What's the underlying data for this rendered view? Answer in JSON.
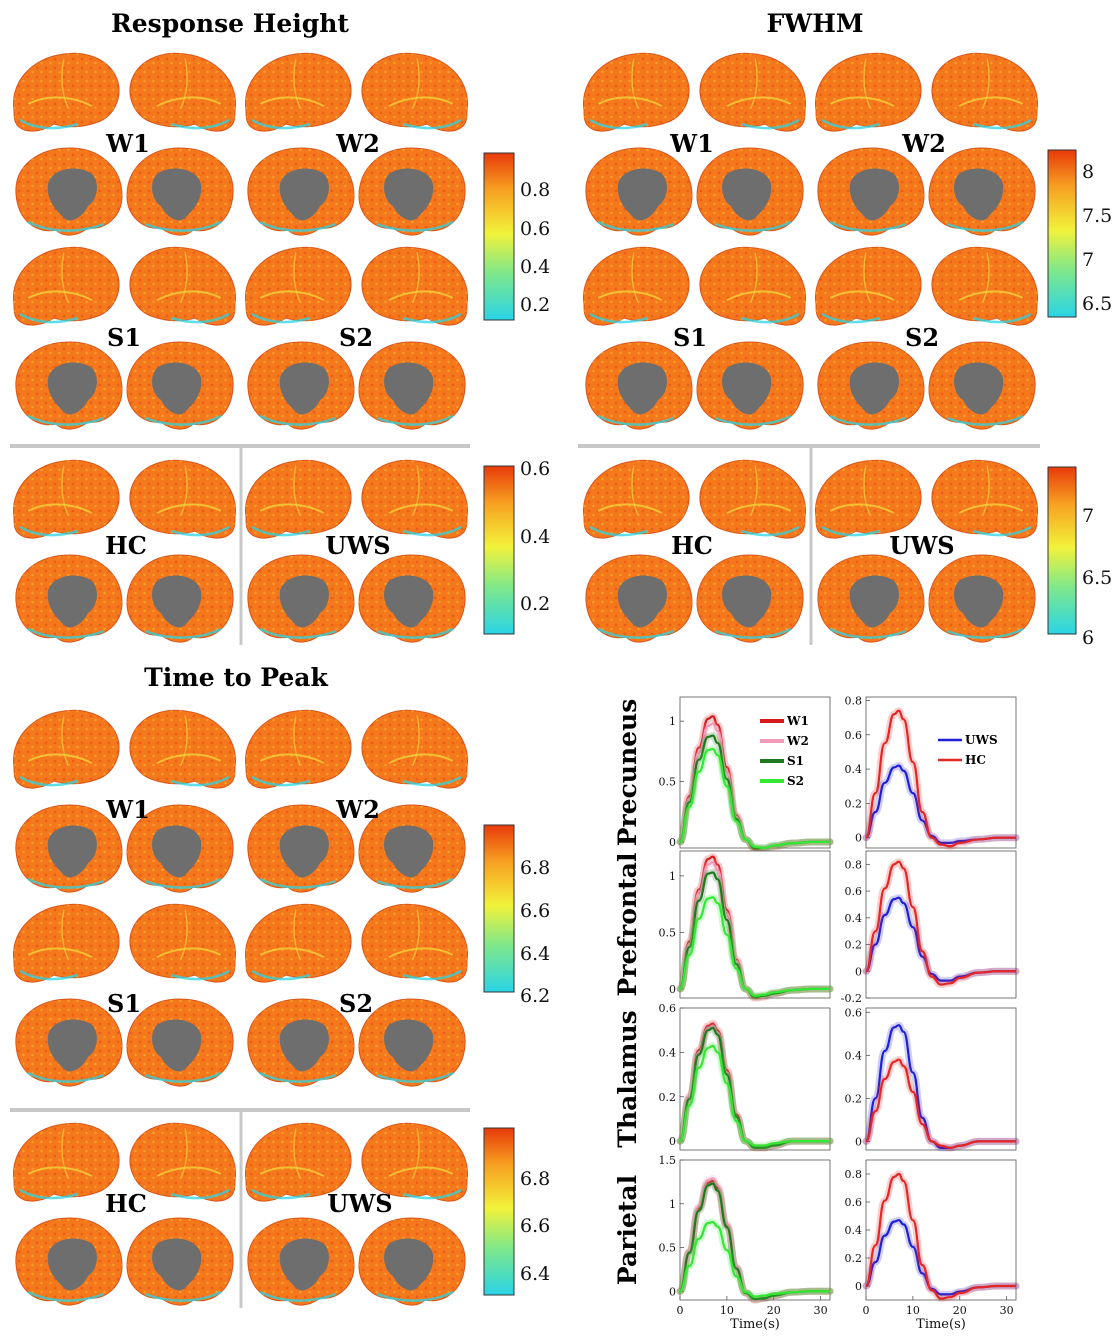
{
  "panels": [
    {
      "id": "response-height",
      "title": "Response Height",
      "groups_top": [
        "W1",
        "W2",
        "S1",
        "S2"
      ],
      "groups_bottom": [
        "HC",
        "UWS"
      ],
      "colorbar_top": [
        "0.8",
        "0.6",
        "0.4",
        "0.2"
      ],
      "colorbar_bottom": [
        "0.6",
        "0.4",
        "0.2"
      ]
    },
    {
      "id": "fwhm",
      "title": "FWHM",
      "groups_top": [
        "W1",
        "W2",
        "S1",
        "S2"
      ],
      "groups_bottom": [
        "HC",
        "UWS"
      ],
      "colorbar_top": [
        "8",
        "7.5",
        "7",
        "6.5"
      ],
      "colorbar_bottom": [
        "7",
        "6.5",
        "6"
      ]
    },
    {
      "id": "time-to-peak",
      "title": "Time to Peak",
      "groups_top": [
        "W1",
        "W2",
        "S1",
        "S2"
      ],
      "groups_bottom": [
        "HC",
        "UWS"
      ],
      "colorbar_top": [
        "6.8",
        "6.6",
        "6.4",
        "6.2"
      ],
      "colorbar_bottom": [
        "6.8",
        "6.6",
        "6.4"
      ]
    }
  ],
  "colors": {
    "colormap": [
      "#2ad4e6",
      "#7fe88a",
      "#f2f23a",
      "#f7a021",
      "#e83a0a"
    ],
    "cortex": "#f5781c",
    "cortex_dark": "#e05010",
    "medial_wall": "#6e6e6e",
    "divider": "#c8c8c8",
    "W1": "#d7191c",
    "W2": "#f29bb8",
    "S1": "#1f7a1f",
    "S2": "#33e833",
    "UWS": "#1f1fd6",
    "HC": "#e32626"
  },
  "chart_data": [
    {
      "type": "line",
      "region": "Precuneus",
      "column": "stage",
      "xlabel": "",
      "ylim": [
        -0.05,
        1.2
      ],
      "yticks": [
        "1",
        "0.5",
        "0"
      ],
      "series": [
        {
          "name": "W1",
          "x": [
            0,
            2,
            4,
            6,
            7,
            8,
            10,
            12,
            14,
            16,
            18,
            20,
            24,
            28,
            32
          ],
          "values": [
            0,
            0.38,
            0.78,
            1.02,
            1.04,
            0.97,
            0.62,
            0.22,
            0.02,
            -0.06,
            -0.06,
            -0.04,
            -0.01,
            0,
            0
          ]
        },
        {
          "name": "W2",
          "x": [
            0,
            2,
            4,
            6,
            7,
            8,
            10,
            12,
            14,
            16,
            18,
            20,
            24,
            28,
            32
          ],
          "values": [
            0,
            0.36,
            0.74,
            0.96,
            0.98,
            0.92,
            0.58,
            0.21,
            0.02,
            -0.05,
            -0.06,
            -0.04,
            -0.01,
            0,
            0
          ]
        },
        {
          "name": "S1",
          "x": [
            0,
            2,
            4,
            6,
            7,
            8,
            10,
            12,
            14,
            16,
            18,
            20,
            24,
            28,
            32
          ],
          "values": [
            0,
            0.33,
            0.68,
            0.87,
            0.88,
            0.82,
            0.52,
            0.19,
            0.02,
            -0.05,
            -0.05,
            -0.03,
            -0.01,
            0,
            0
          ]
        },
        {
          "name": "S2",
          "x": [
            0,
            2,
            4,
            6,
            7,
            8,
            10,
            12,
            14,
            16,
            18,
            20,
            24,
            28,
            32
          ],
          "values": [
            0,
            0.29,
            0.58,
            0.76,
            0.77,
            0.72,
            0.46,
            0.17,
            0.02,
            -0.04,
            -0.05,
            -0.03,
            -0.01,
            0,
            0
          ]
        }
      ]
    },
    {
      "type": "line",
      "region": "Precuneus",
      "column": "group",
      "xlabel": "",
      "ylim": [
        -0.06,
        0.82
      ],
      "yticks": [
        "0.8",
        "0.6",
        "0.4",
        "0.2",
        "0"
      ],
      "series": [
        {
          "name": "UWS",
          "x": [
            0,
            2,
            4,
            6,
            7,
            8,
            10,
            12,
            14,
            16,
            18,
            20,
            24,
            28,
            32
          ],
          "values": [
            0,
            0.15,
            0.32,
            0.41,
            0.42,
            0.39,
            0.26,
            0.1,
            0.01,
            -0.03,
            -0.03,
            -0.02,
            -0.01,
            0,
            0
          ]
        },
        {
          "name": "HC",
          "x": [
            0,
            2,
            4,
            6,
            7,
            8,
            10,
            12,
            14,
            16,
            18,
            20,
            24,
            28,
            32
          ],
          "values": [
            0,
            0.26,
            0.55,
            0.72,
            0.74,
            0.69,
            0.44,
            0.15,
            0.0,
            -0.04,
            -0.05,
            -0.03,
            -0.01,
            0,
            0
          ]
        }
      ]
    },
    {
      "type": "line",
      "region": "Prefrontal",
      "column": "stage",
      "xlabel": "",
      "ylim": [
        -0.08,
        1.22
      ],
      "yticks": [
        "1",
        "0.5",
        "0"
      ],
      "series": [
        {
          "name": "W1",
          "x": [
            0,
            2,
            4,
            6,
            7,
            8,
            10,
            12,
            14,
            16,
            18,
            20,
            24,
            28,
            32
          ],
          "values": [
            0,
            0.42,
            0.88,
            1.15,
            1.17,
            1.1,
            0.7,
            0.26,
            0.0,
            -0.08,
            -0.07,
            -0.04,
            -0.01,
            0,
            0
          ]
        },
        {
          "name": "W2",
          "x": [
            0,
            2,
            4,
            6,
            7,
            8,
            10,
            12,
            14,
            16,
            18,
            20,
            24,
            28,
            32
          ],
          "values": [
            0,
            0.4,
            0.85,
            1.1,
            1.12,
            1.05,
            0.67,
            0.25,
            0.0,
            -0.07,
            -0.07,
            -0.04,
            -0.01,
            0,
            0
          ]
        },
        {
          "name": "S1",
          "x": [
            0,
            2,
            4,
            6,
            7,
            8,
            10,
            12,
            14,
            16,
            18,
            20,
            24,
            28,
            32
          ],
          "values": [
            0,
            0.37,
            0.78,
            1.02,
            1.03,
            0.97,
            0.61,
            0.22,
            0.0,
            -0.07,
            -0.06,
            -0.04,
            -0.01,
            0,
            0
          ]
        },
        {
          "name": "S2",
          "x": [
            0,
            2,
            4,
            6,
            7,
            8,
            10,
            12,
            14,
            16,
            18,
            20,
            24,
            28,
            32
          ],
          "values": [
            0,
            0.3,
            0.62,
            0.8,
            0.81,
            0.76,
            0.48,
            0.18,
            0.0,
            -0.06,
            -0.05,
            -0.03,
            -0.01,
            0,
            0
          ]
        }
      ]
    },
    {
      "type": "line",
      "region": "Prefrontal",
      "column": "group",
      "xlabel": "",
      "ylim": [
        -0.2,
        0.9
      ],
      "yticks": [
        "0.8",
        "0.6",
        "0.4",
        "0.2",
        "0",
        "-0.2"
      ],
      "series": [
        {
          "name": "UWS",
          "x": [
            0,
            2,
            4,
            6,
            7,
            8,
            10,
            12,
            14,
            16,
            18,
            20,
            24,
            28,
            32
          ],
          "values": [
            0,
            0.2,
            0.42,
            0.54,
            0.55,
            0.51,
            0.33,
            0.11,
            -0.02,
            -0.07,
            -0.07,
            -0.04,
            -0.01,
            0,
            0
          ]
        },
        {
          "name": "HC",
          "x": [
            0,
            2,
            4,
            6,
            7,
            8,
            10,
            12,
            14,
            16,
            18,
            20,
            24,
            28,
            32
          ],
          "values": [
            0,
            0.3,
            0.62,
            0.8,
            0.82,
            0.77,
            0.48,
            0.15,
            -0.04,
            -0.1,
            -0.09,
            -0.05,
            -0.01,
            0,
            0
          ]
        }
      ]
    },
    {
      "type": "line",
      "region": "Thalamus",
      "column": "stage",
      "xlabel": "",
      "ylim": [
        -0.04,
        0.6
      ],
      "yticks": [
        "0.6",
        "0.4",
        "0.2",
        "0"
      ],
      "series": [
        {
          "name": "W1",
          "x": [
            0,
            2,
            4,
            6,
            7,
            8,
            10,
            12,
            14,
            16,
            18,
            20,
            24,
            28,
            32
          ],
          "values": [
            0,
            0.2,
            0.41,
            0.52,
            0.53,
            0.5,
            0.32,
            0.12,
            0.0,
            -0.03,
            -0.03,
            -0.02,
            0,
            0,
            0
          ]
        },
        {
          "name": "W2",
          "x": [
            0,
            2,
            4,
            6,
            7,
            8,
            10,
            12,
            14,
            16,
            18,
            20,
            24,
            28,
            32
          ],
          "values": [
            0,
            0.2,
            0.4,
            0.51,
            0.52,
            0.49,
            0.31,
            0.11,
            0.0,
            -0.03,
            -0.03,
            -0.02,
            0,
            0,
            0
          ]
        },
        {
          "name": "S1",
          "x": [
            0,
            2,
            4,
            6,
            7,
            8,
            10,
            12,
            14,
            16,
            18,
            20,
            24,
            28,
            32
          ],
          "values": [
            0,
            0.19,
            0.39,
            0.5,
            0.51,
            0.48,
            0.3,
            0.11,
            0.0,
            -0.03,
            -0.03,
            -0.02,
            0,
            0,
            0
          ]
        },
        {
          "name": "S2",
          "x": [
            0,
            2,
            4,
            6,
            7,
            8,
            10,
            12,
            14,
            16,
            18,
            20,
            24,
            28,
            32
          ],
          "values": [
            0,
            0.16,
            0.33,
            0.42,
            0.43,
            0.4,
            0.26,
            0.09,
            0.0,
            -0.02,
            -0.02,
            -0.01,
            0,
            0,
            0
          ]
        }
      ]
    },
    {
      "type": "line",
      "region": "Thalamus",
      "column": "group",
      "xlabel": "",
      "ylim": [
        -0.04,
        0.62
      ],
      "yticks": [
        "0.6",
        "0.4",
        "0.2",
        "0"
      ],
      "series": [
        {
          "name": "UWS",
          "x": [
            0,
            2,
            4,
            6,
            7,
            8,
            10,
            12,
            14,
            16,
            18,
            20,
            24,
            28,
            32
          ],
          "values": [
            0,
            0.2,
            0.42,
            0.53,
            0.54,
            0.51,
            0.32,
            0.11,
            0.0,
            -0.03,
            -0.03,
            -0.02,
            0,
            0,
            0
          ]
        },
        {
          "name": "HC",
          "x": [
            0,
            2,
            4,
            6,
            7,
            8,
            10,
            12,
            14,
            16,
            18,
            20,
            24,
            28,
            32
          ],
          "values": [
            0,
            0.14,
            0.29,
            0.37,
            0.38,
            0.35,
            0.23,
            0.08,
            0.0,
            -0.02,
            -0.03,
            -0.02,
            0,
            0,
            0
          ]
        }
      ]
    },
    {
      "type": "line",
      "region": "Parietal",
      "column": "stage",
      "xlabel": "Time(s)",
      "xticks": [
        "0",
        "10",
        "20",
        "30"
      ],
      "ylim": [
        -0.1,
        1.5
      ],
      "yticks": [
        "1.5",
        "1",
        "0.5",
        "0"
      ],
      "series": [
        {
          "name": "W1",
          "x": [
            0,
            2,
            4,
            6,
            7,
            8,
            10,
            12,
            14,
            16,
            18,
            20,
            24,
            28,
            32
          ],
          "values": [
            0,
            0.45,
            0.95,
            1.24,
            1.26,
            1.18,
            0.75,
            0.27,
            -0.02,
            -0.1,
            -0.08,
            -0.05,
            -0.01,
            0,
            0
          ]
        },
        {
          "name": "W2",
          "x": [
            0,
            2,
            4,
            6,
            7,
            8,
            10,
            12,
            14,
            16,
            18,
            20,
            24,
            28,
            32
          ],
          "values": [
            0,
            0.46,
            0.97,
            1.27,
            1.29,
            1.21,
            0.77,
            0.28,
            -0.02,
            -0.1,
            -0.08,
            -0.05,
            -0.01,
            0,
            0
          ]
        },
        {
          "name": "S1",
          "x": [
            0,
            2,
            4,
            6,
            7,
            8,
            10,
            12,
            14,
            16,
            18,
            20,
            24,
            28,
            32
          ],
          "values": [
            0,
            0.44,
            0.92,
            1.21,
            1.23,
            1.15,
            0.73,
            0.26,
            -0.02,
            -0.09,
            -0.08,
            -0.05,
            -0.01,
            0,
            0
          ]
        },
        {
          "name": "S2",
          "x": [
            0,
            2,
            4,
            6,
            7,
            8,
            10,
            12,
            14,
            16,
            18,
            20,
            24,
            28,
            32
          ],
          "values": [
            0,
            0.29,
            0.6,
            0.78,
            0.79,
            0.74,
            0.47,
            0.17,
            -0.01,
            -0.06,
            -0.05,
            -0.03,
            -0.01,
            0,
            0
          ]
        }
      ]
    },
    {
      "type": "line",
      "region": "Parietal",
      "column": "group",
      "xlabel": "Time(s)",
      "xticks": [
        "0",
        "10",
        "20",
        "30"
      ],
      "ylim": [
        -0.1,
        0.9
      ],
      "yticks": [
        "0.8",
        "0.6",
        "0.4",
        "0.2",
        "0"
      ],
      "series": [
        {
          "name": "UWS",
          "x": [
            0,
            2,
            4,
            6,
            7,
            8,
            10,
            12,
            14,
            16,
            18,
            20,
            24,
            28,
            32
          ],
          "values": [
            0,
            0.17,
            0.36,
            0.46,
            0.47,
            0.44,
            0.28,
            0.09,
            -0.02,
            -0.06,
            -0.06,
            -0.04,
            -0.01,
            0,
            0
          ]
        },
        {
          "name": "HC",
          "x": [
            0,
            2,
            4,
            6,
            7,
            8,
            10,
            12,
            14,
            16,
            18,
            20,
            24,
            28,
            32
          ],
          "values": [
            0,
            0.29,
            0.61,
            0.78,
            0.8,
            0.75,
            0.47,
            0.15,
            -0.03,
            -0.09,
            -0.08,
            -0.05,
            -0.01,
            0,
            0
          ]
        }
      ]
    }
  ]
}
